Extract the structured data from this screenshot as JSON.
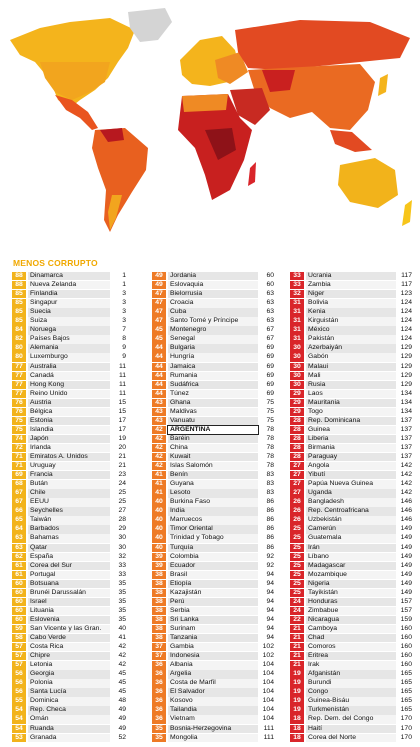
{
  "header": "MENOS CORRUPTO",
  "highlighted": {
    "column": 1,
    "row": 17
  },
  "columns": [
    {
      "color": "#f2b31b",
      "rows": [
        [
          88,
          "Dinamarca",
          1
        ],
        [
          88,
          "Nueva Zelanda",
          1
        ],
        [
          85,
          "Finlandia",
          3
        ],
        [
          85,
          "Singapur",
          3
        ],
        [
          85,
          "Suecia",
          3
        ],
        [
          85,
          "Suiza",
          3
        ],
        [
          84,
          "Noruega",
          7
        ],
        [
          82,
          "Países Bajos",
          8
        ],
        [
          80,
          "Alemania",
          9
        ],
        [
          80,
          "Luxemburgo",
          9
        ],
        [
          77,
          "Australia",
          11
        ],
        [
          77,
          "Canadá",
          11
        ],
        [
          77,
          "Hong Kong",
          11
        ],
        [
          77,
          "Reino Unido",
          11
        ],
        [
          76,
          "Austria",
          15
        ],
        [
          76,
          "Bélgica",
          15
        ],
        [
          75,
          "Estonia",
          17
        ],
        [
          75,
          "Islandia",
          17
        ],
        [
          74,
          "Japón",
          19
        ],
        [
          72,
          "Irlanda",
          20
        ],
        [
          71,
          "Emiratos A. Unidos",
          21
        ],
        [
          71,
          "Uruguay",
          21
        ],
        [
          69,
          "Francia",
          23
        ],
        [
          68,
          "Bután",
          24
        ],
        [
          67,
          "Chile",
          25
        ],
        [
          67,
          "EEUU",
          25
        ],
        [
          66,
          "Seychelles",
          27
        ],
        [
          65,
          "Taiwán",
          28
        ],
        [
          64,
          "Barbados",
          29
        ],
        [
          63,
          "Bahamas",
          30
        ],
        [
          63,
          "Qatar",
          30
        ],
        [
          62,
          "España",
          32
        ],
        [
          61,
          "Corea del Sur",
          33
        ],
        [
          61,
          "Portugal",
          33
        ],
        [
          60,
          "Botsuana",
          35
        ],
        [
          60,
          "Brunéi Darussalán",
          35
        ],
        [
          60,
          "Israel",
          35
        ],
        [
          60,
          "Lituania",
          35
        ],
        [
          60,
          "Eslovenia",
          35
        ],
        [
          59,
          "San Vicente y las Gran.",
          40
        ],
        [
          58,
          "Cabo Verde",
          41
        ],
        [
          57,
          "Costa Rica",
          42
        ],
        [
          57,
          "Chipre",
          42
        ],
        [
          57,
          "Letonia",
          42
        ],
        [
          56,
          "Georgia",
          45
        ],
        [
          56,
          "Polonia",
          45
        ],
        [
          56,
          "Santa Lucía",
          45
        ],
        [
          55,
          "Dominica",
          48
        ],
        [
          54,
          "Rep. Checa",
          49
        ],
        [
          54,
          "Omán",
          49
        ],
        [
          54,
          "Ruanda",
          49
        ],
        [
          53,
          "Granada",
          52
        ]
      ]
    },
    {
      "color": "#ee7a25",
      "rows": [
        [
          49,
          "Jordania",
          60
        ],
        [
          49,
          "Eslovaquia",
          60
        ],
        [
          47,
          "Bielorrusia",
          63
        ],
        [
          47,
          "Croacia",
          63
        ],
        [
          47,
          "Cuba",
          63
        ],
        [
          47,
          "Santo Tomé y Príncipe",
          63
        ],
        [
          45,
          "Montenegro",
          67
        ],
        [
          45,
          "Senegal",
          67
        ],
        [
          44,
          "Bulgaria",
          69
        ],
        [
          44,
          "Hungría",
          69
        ],
        [
          44,
          "Jamaica",
          69
        ],
        [
          44,
          "Rumania",
          69
        ],
        [
          44,
          "Sudáfrica",
          69
        ],
        [
          44,
          "Túnez",
          69
        ],
        [
          43,
          "Ghana",
          75
        ],
        [
          43,
          "Maldivas",
          75
        ],
        [
          43,
          "Vanuatu",
          75
        ],
        [
          42,
          "ARGENTINA",
          78
        ],
        [
          42,
          "Baréin",
          78
        ],
        [
          42,
          "China",
          78
        ],
        [
          42,
          "Kuwait",
          78
        ],
        [
          42,
          "Islas Salomón",
          78
        ],
        [
          41,
          "Benín",
          83
        ],
        [
          41,
          "Guyana",
          83
        ],
        [
          41,
          "Lesoto",
          83
        ],
        [
          40,
          "Burkina Faso",
          86
        ],
        [
          40,
          "India",
          86
        ],
        [
          40,
          "Marruecos",
          86
        ],
        [
          40,
          "Timor Oriental",
          86
        ],
        [
          40,
          "Trinidad y Tobago",
          86
        ],
        [
          40,
          "Turquía",
          86
        ],
        [
          39,
          "Colombia",
          92
        ],
        [
          39,
          "Ecuador",
          92
        ],
        [
          38,
          "Brasil",
          94
        ],
        [
          38,
          "Etiopía",
          94
        ],
        [
          38,
          "Kazajistán",
          94
        ],
        [
          38,
          "Perú",
          94
        ],
        [
          38,
          "Serbia",
          94
        ],
        [
          38,
          "Sri Lanka",
          94
        ],
        [
          38,
          "Surinam",
          94
        ],
        [
          38,
          "Tanzania",
          94
        ],
        [
          37,
          "Gambia",
          102
        ],
        [
          37,
          "Indonesia",
          102
        ],
        [
          36,
          "Albania",
          104
        ],
        [
          36,
          "Argelia",
          104
        ],
        [
          36,
          "Costa de Marfil",
          104
        ],
        [
          36,
          "El Salvador",
          104
        ],
        [
          36,
          "Kosovo",
          104
        ],
        [
          36,
          "Tailandia",
          104
        ],
        [
          36,
          "Vietnam",
          104
        ],
        [
          35,
          "Bosnia-Herzegovina",
          111
        ],
        [
          35,
          "Mongolia",
          111
        ]
      ]
    },
    {
      "color": "#d9252a",
      "rows": [
        [
          33,
          "Ucrania",
          117
        ],
        [
          33,
          "Zambia",
          117
        ],
        [
          32,
          "Niger",
          123
        ],
        [
          31,
          "Bolivia",
          124
        ],
        [
          31,
          "Kenia",
          124
        ],
        [
          31,
          "Kirguistán",
          124
        ],
        [
          31,
          "México",
          124
        ],
        [
          31,
          "Pakistán",
          124
        ],
        [
          30,
          "Azerbaiyán",
          129
        ],
        [
          30,
          "Gabón",
          129
        ],
        [
          30,
          "Malaui",
          129
        ],
        [
          30,
          "Mali",
          129
        ],
        [
          30,
          "Rusia",
          129
        ],
        [
          29,
          "Laos",
          134
        ],
        [
          29,
          "Mauritania",
          134
        ],
        [
          29,
          "Togo",
          134
        ],
        [
          28,
          "Rep. Dominicana",
          137
        ],
        [
          28,
          "Guinea",
          137
        ],
        [
          28,
          "Liberia",
          137
        ],
        [
          28,
          "Birmania",
          137
        ],
        [
          28,
          "Paraguay",
          137
        ],
        [
          27,
          "Angola",
          142
        ],
        [
          27,
          "Yibutí",
          142
        ],
        [
          27,
          "Papúa Nueva Guinea",
          142
        ],
        [
          27,
          "Uganda",
          142
        ],
        [
          26,
          "Bangladesh",
          146
        ],
        [
          26,
          "Rep. Centroafricana",
          146
        ],
        [
          26,
          "Uzbekistán",
          146
        ],
        [
          25,
          "Camerún",
          149
        ],
        [
          25,
          "Guatemala",
          149
        ],
        [
          25,
          "Irán",
          149
        ],
        [
          25,
          "Líbano",
          149
        ],
        [
          25,
          "Madagascar",
          149
        ],
        [
          25,
          "Mozambique",
          149
        ],
        [
          25,
          "Nigeria",
          149
        ],
        [
          25,
          "Tayikistán",
          149
        ],
        [
          24,
          "Honduras",
          157
        ],
        [
          24,
          "Zimbabue",
          157
        ],
        [
          22,
          "Nicaragua",
          159
        ],
        [
          21,
          "Camboya",
          160
        ],
        [
          21,
          "Chad",
          160
        ],
        [
          21,
          "Comoros",
          160
        ],
        [
          21,
          "Eritrea",
          160
        ],
        [
          21,
          "Irak",
          160
        ],
        [
          19,
          "Afganistán",
          165
        ],
        [
          19,
          "Burundi",
          165
        ],
        [
          19,
          "Congo",
          165
        ],
        [
          19,
          "Guinea-Bisáu",
          165
        ],
        [
          19,
          "Turkmenistán",
          165
        ],
        [
          18,
          "Rep. Dem. del Congo",
          170
        ],
        [
          18,
          "Haití",
          170
        ],
        [
          18,
          "Corea del Norte",
          170
        ]
      ]
    }
  ]
}
